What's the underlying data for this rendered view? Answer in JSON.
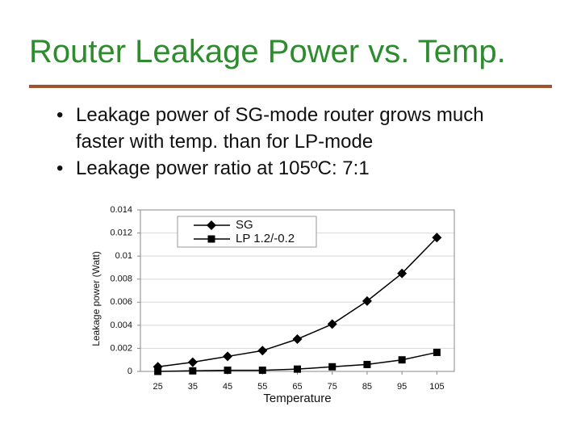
{
  "slide_title": "Router Leakage Power vs. Temp.",
  "bullets": [
    "Leakage power of SG-mode router grows much faster with temp. than for LP-mode",
    "Leakage power ratio at 105ºC: 7:1"
  ],
  "chart_data": {
    "type": "line",
    "x_label": "Temperature",
    "y_label": "Leakage power (Watt)",
    "x": [
      25,
      35,
      45,
      55,
      65,
      75,
      85,
      95,
      105
    ],
    "series": [
      {
        "name": "SG",
        "color": "#000000",
        "marker": "diamond",
        "values": [
          0.0004,
          0.0008,
          0.0013,
          0.0018,
          0.0028,
          0.0041,
          0.0061,
          0.0085,
          0.0116
        ]
      },
      {
        "name": "LP 1.2/-0.2",
        "color": "#000000",
        "marker": "square",
        "values": [
          0,
          5e-05,
          0.0001,
          0.0001,
          0.0002,
          0.0004,
          0.0006,
          0.001,
          0.00165
        ]
      }
    ],
    "xlim": [
      20,
      110
    ],
    "xticks": [
      25,
      35,
      45,
      55,
      65,
      75,
      85,
      95,
      105
    ],
    "ylim": [
      0,
      0.014
    ],
    "yticks": [
      0,
      0.002,
      0.004,
      0.006,
      0.008,
      0.01,
      0.012,
      0.014
    ],
    "grid": true,
    "legend": "top-left"
  }
}
